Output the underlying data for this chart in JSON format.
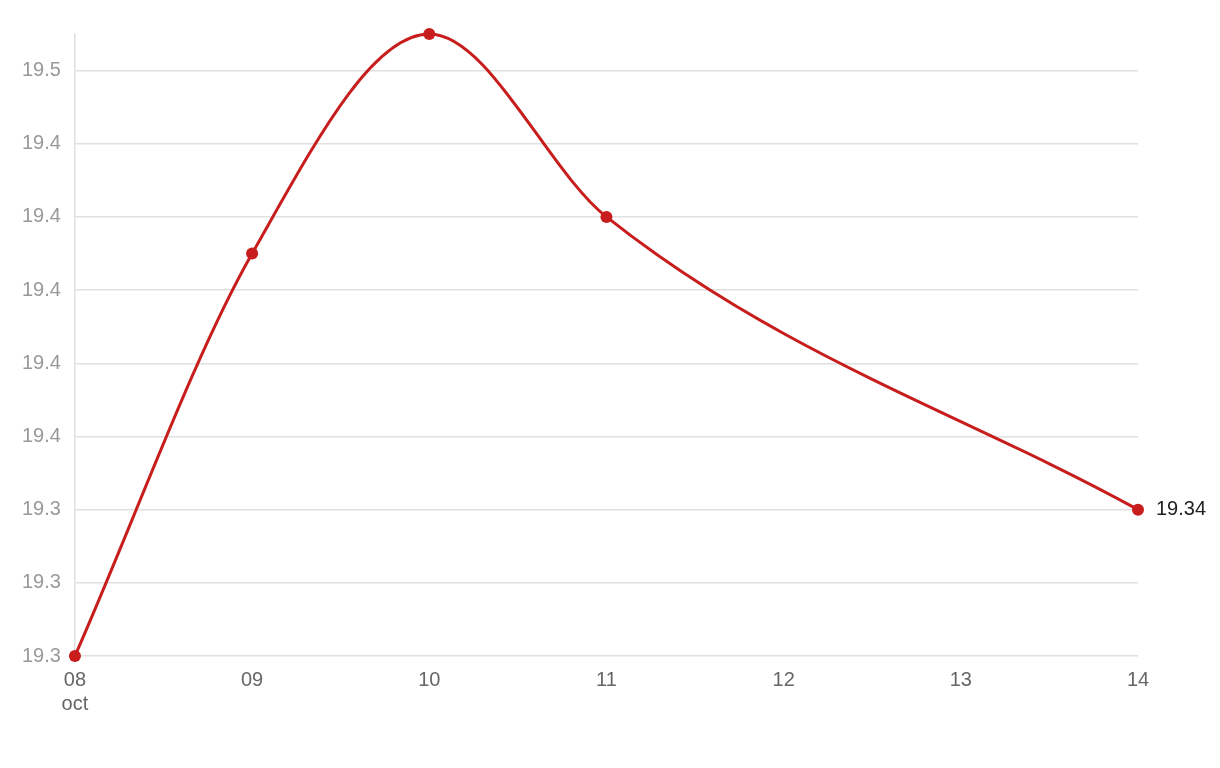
{
  "chart_data": {
    "type": "line",
    "x": [
      8,
      9,
      10,
      11,
      14
    ],
    "series": [
      {
        "color": "#c71e1d",
        "values": [
          19.3,
          19.41,
          19.47,
          19.42,
          19.34
        ],
        "value_labels": [
          null,
          null,
          null,
          null,
          "19.34"
        ]
      }
    ],
    "xlim": [
      8,
      14
    ],
    "xticks": [
      {
        "value": 8,
        "label": "08\noct"
      },
      {
        "value": 9,
        "label": "09"
      },
      {
        "value": 10,
        "label": "10"
      },
      {
        "value": 11,
        "label": "11"
      },
      {
        "value": 12,
        "label": "12"
      },
      {
        "value": 13,
        "label": "13"
      },
      {
        "value": 14,
        "label": "14"
      }
    ],
    "ylim": [
      19.3,
      19.47
    ],
    "yticks": [
      {
        "value": 19.3,
        "label": "19.3"
      },
      {
        "value": 19.32,
        "label": "19.3"
      },
      {
        "value": 19.34,
        "label": "19.3"
      },
      {
        "value": 19.36,
        "label": "19.4"
      },
      {
        "value": 19.38,
        "label": "19.4"
      },
      {
        "value": 19.4,
        "label": "19.4"
      },
      {
        "value": 19.42,
        "label": "19.4"
      },
      {
        "value": 19.44,
        "label": "19.4"
      },
      {
        "value": 19.46,
        "label": "19.5"
      }
    ],
    "grid": "y",
    "marker": "circle",
    "line_style": "solid"
  }
}
